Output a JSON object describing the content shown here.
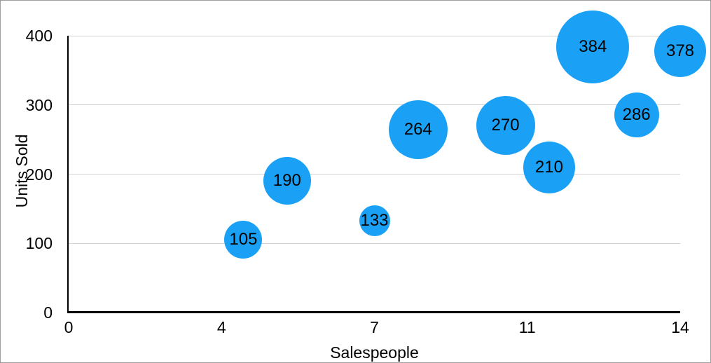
{
  "chart_data": {
    "type": "bubble",
    "xlabel": "Salespeople",
    "ylabel": "Units Sold",
    "xlim": [
      0,
      14
    ],
    "ylim": [
      0,
      400
    ],
    "x_ticks": [
      {
        "value": 0,
        "label": "0"
      },
      {
        "value": 3.5,
        "label": "4"
      },
      {
        "value": 7,
        "label": "7"
      },
      {
        "value": 10.5,
        "label": "11"
      },
      {
        "value": 14,
        "label": "14"
      }
    ],
    "y_ticks": [
      {
        "value": 0,
        "label": "0"
      },
      {
        "value": 100,
        "label": "100"
      },
      {
        "value": 200,
        "label": "200"
      },
      {
        "value": 300,
        "label": "300"
      },
      {
        "value": 400,
        "label": "400"
      }
    ],
    "grid": "horizontal-only",
    "legend": "none",
    "points": [
      {
        "x": 4,
        "y": 105,
        "label": "105",
        "radius_px": 27
      },
      {
        "x": 5,
        "y": 190,
        "label": "190",
        "radius_px": 34
      },
      {
        "x": 7,
        "y": 133,
        "label": "133",
        "radius_px": 22
      },
      {
        "x": 8,
        "y": 264,
        "label": "264",
        "radius_px": 42
      },
      {
        "x": 10,
        "y": 270,
        "label": "270",
        "radius_px": 42
      },
      {
        "x": 11,
        "y": 210,
        "label": "210",
        "radius_px": 37
      },
      {
        "x": 12,
        "y": 384,
        "label": "384",
        "radius_px": 52
      },
      {
        "x": 13,
        "y": 286,
        "label": "286",
        "radius_px": 32
      },
      {
        "x": 14,
        "y": 378,
        "label": "378",
        "radius_px": 37
      }
    ],
    "colors": {
      "bubble_fill": "#1aa1f6",
      "bubble_text": "#000000",
      "gridline": "#d2d2d2",
      "axis_line": "#000000",
      "tick_text": "#000000",
      "frame_border": "#9e9e9e",
      "background": "#ffffff"
    }
  }
}
